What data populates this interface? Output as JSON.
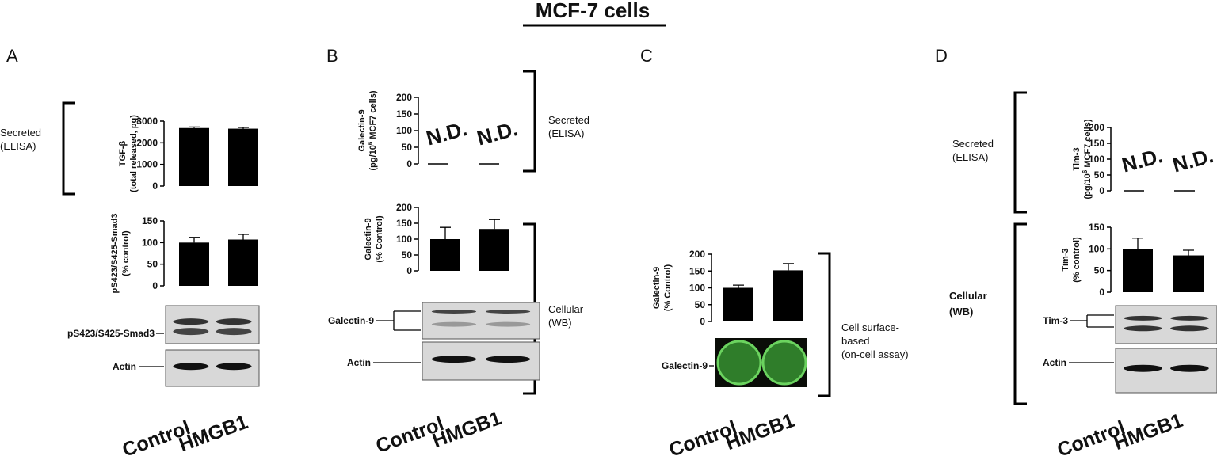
{
  "title": "MCF-7 cells",
  "panels": [
    {
      "label": "A",
      "x_labels": [
        "Control",
        "HMGB1"
      ],
      "side_labels": [
        [
          "Secreted",
          "(ELISA)"
        ]
      ],
      "charts": [
        {
          "type": "bar",
          "ylabel": [
            "TGF-β",
            "(total released, pg)"
          ],
          "ylim": [
            0,
            3000
          ],
          "yticks": [
            0,
            1000,
            2000,
            3000
          ],
          "values": [
            2680,
            2650
          ],
          "errors": [
            50,
            60
          ],
          "color": "#000000"
        },
        {
          "type": "bar",
          "ylabel": [
            "pS423/S425-Smad3",
            "(% control)"
          ],
          "ylim": [
            0,
            150
          ],
          "yticks": [
            0,
            50,
            100,
            150
          ],
          "values": [
            100,
            107
          ],
          "errors": [
            12,
            12
          ],
          "color": "#000000"
        }
      ],
      "blots": [
        {
          "label": "pS423/S425-Smad3"
        },
        {
          "label": "Actin"
        }
      ]
    },
    {
      "label": "B",
      "x_labels": [
        "Control",
        "HMGB1"
      ],
      "side_labels": [
        [
          "Secreted",
          "(ELISA)"
        ],
        [
          "Cellular",
          "(WB)"
        ]
      ],
      "charts": [
        {
          "type": "bar",
          "ylabel": [
            "Galectin-9",
            {
              "text": "(pg/10",
              "sup": "6",
              "post": " MCF7 cells)"
            }
          ],
          "ylim": [
            0,
            200
          ],
          "yticks": [
            0,
            50,
            100,
            150,
            200
          ],
          "values": [
            null,
            null
          ],
          "value_labels": [
            "N.D.",
            "N.D."
          ],
          "color": "#000000"
        },
        {
          "type": "bar",
          "ylabel": [
            "Galectin-9",
            "(% Control)"
          ],
          "ylim": [
            0,
            200
          ],
          "yticks": [
            0,
            50,
            100,
            150,
            200
          ],
          "values": [
            100,
            132
          ],
          "errors": [
            37,
            30
          ],
          "color": "#000000"
        }
      ],
      "blots": [
        {
          "label": "Galectin-9"
        },
        {
          "label": "Actin"
        }
      ]
    },
    {
      "label": "C",
      "x_labels": [
        "Control",
        "HMGB1"
      ],
      "side_labels": [
        [
          "Cell surface-",
          "based",
          "(on-cell assay)"
        ]
      ],
      "charts": [
        {
          "type": "bar",
          "ylabel": [
            "Galectin-9",
            "(% Control)"
          ],
          "ylim": [
            0,
            200
          ],
          "yticks": [
            0,
            50,
            100,
            150,
            200
          ],
          "values": [
            100,
            152
          ],
          "errors": [
            8,
            20
          ],
          "color": "#000000"
        }
      ],
      "blots": [
        {
          "label": "Galectin-9"
        }
      ]
    },
    {
      "label": "D",
      "x_labels": [
        "Control",
        "HMGB1"
      ],
      "side_labels": [
        [
          "Secreted",
          "(ELISA)"
        ],
        [
          "Cellular",
          "(WB)"
        ]
      ],
      "charts": [
        {
          "type": "bar",
          "ylabel": [
            "Tim-3",
            {
              "text": "(pg/10",
              "sup": "6",
              "post": " MCF7 cells)"
            }
          ],
          "ylim": [
            0,
            200
          ],
          "yticks": [
            0,
            50,
            100,
            150,
            200
          ],
          "values": [
            null,
            null
          ],
          "value_labels": [
            "N.D.",
            "N.D."
          ],
          "color": "#000000"
        },
        {
          "type": "bar",
          "ylabel": [
            "Tim-3",
            "(% control)"
          ],
          "ylim": [
            0,
            150
          ],
          "yticks": [
            0,
            50,
            100,
            150
          ],
          "values": [
            100,
            85
          ],
          "errors": [
            25,
            12
          ],
          "color": "#000000"
        }
      ],
      "blots": [
        {
          "label": "Tim-3"
        },
        {
          "label": "Actin"
        }
      ]
    }
  ]
}
